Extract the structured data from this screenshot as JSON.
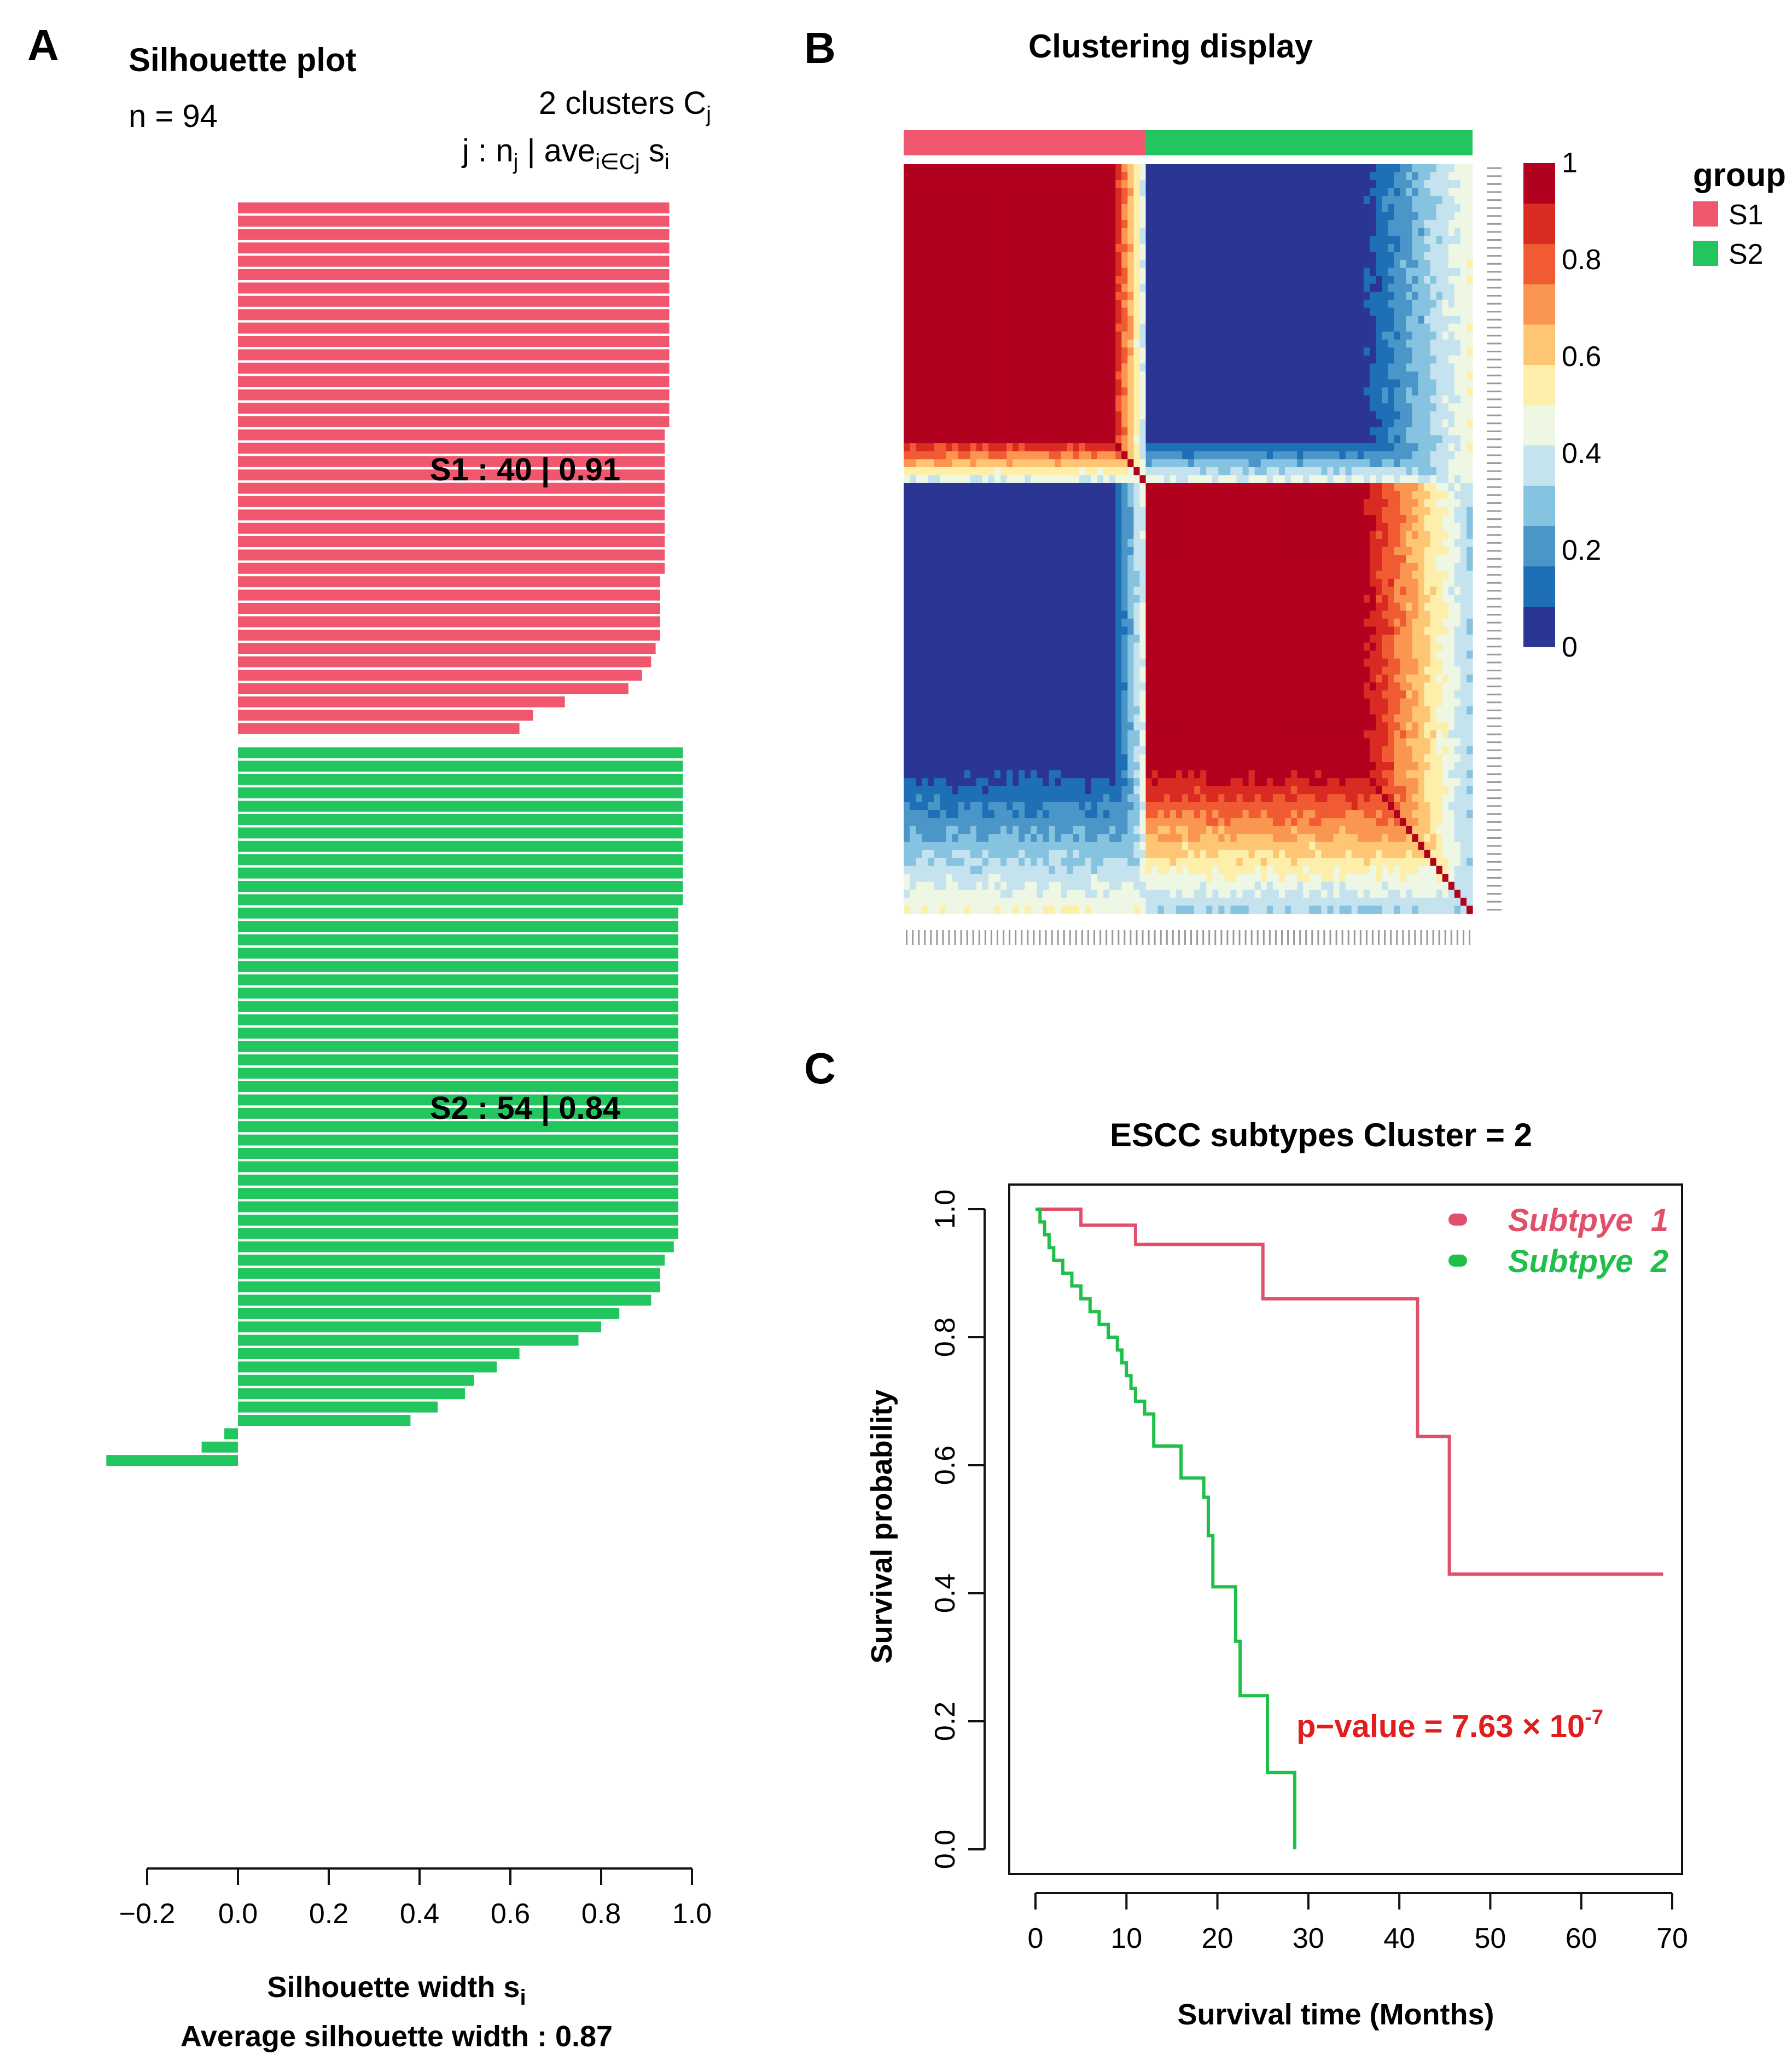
{
  "panels": {
    "a": {
      "letter": "A"
    },
    "b": {
      "letter": "B"
    },
    "c": {
      "letter": "C"
    }
  },
  "chart_data": [
    {
      "type": "bar",
      "orientation": "horizontal",
      "title": "Silhouette plot",
      "n_label": "n = 94",
      "header": {
        "clusters_prefix": "2  clusters  C",
        "clusters_sub": "j",
        "format_j": "j :  n",
        "format_sub_j": "j",
        "format_sep": " | ave",
        "format_sub_i": "i∈Cj",
        "format_s": "  s",
        "format_sub_s": "i"
      },
      "xlabel": "Silhouette width s",
      "xlabel_sub": "i",
      "footer": "Average silhouette width : 0.87",
      "xlim": [
        -0.2,
        1.0
      ],
      "xticks": [
        "−0.2",
        "0.0",
        "0.2",
        "0.4",
        "0.6",
        "0.8",
        "1.0"
      ],
      "clusters": [
        {
          "name": "S1",
          "color": "#f0566d",
          "label": "S1 :   40  | 0.91",
          "values": [
            0.95,
            0.95,
            0.95,
            0.95,
            0.95,
            0.95,
            0.95,
            0.95,
            0.95,
            0.95,
            0.95,
            0.95,
            0.95,
            0.95,
            0.95,
            0.95,
            0.95,
            0.94,
            0.94,
            0.94,
            0.94,
            0.94,
            0.94,
            0.94,
            0.94,
            0.94,
            0.94,
            0.94,
            0.93,
            0.93,
            0.93,
            0.93,
            0.93,
            0.92,
            0.91,
            0.89,
            0.86,
            0.72,
            0.65,
            0.62
          ]
        },
        {
          "name": "S2",
          "color": "#22c55e",
          "label": "S2 :   54  | 0.84",
          "values": [
            0.98,
            0.98,
            0.98,
            0.98,
            0.98,
            0.98,
            0.98,
            0.98,
            0.98,
            0.98,
            0.98,
            0.98,
            0.97,
            0.97,
            0.97,
            0.97,
            0.97,
            0.97,
            0.97,
            0.97,
            0.97,
            0.97,
            0.97,
            0.97,
            0.97,
            0.97,
            0.97,
            0.97,
            0.97,
            0.97,
            0.97,
            0.97,
            0.97,
            0.97,
            0.97,
            0.97,
            0.97,
            0.96,
            0.94,
            0.93,
            0.93,
            0.91,
            0.84,
            0.8,
            0.75,
            0.62,
            0.57,
            0.52,
            0.5,
            0.44,
            0.38,
            -0.03,
            -0.08,
            -0.29
          ]
        }
      ]
    },
    {
      "type": "heatmap",
      "title": "Clustering display",
      "groups": [
        {
          "name": "S1",
          "size": 40,
          "color": "#f0566d"
        },
        {
          "name": "S2",
          "size": 54,
          "color": "#22c55e"
        }
      ],
      "colorscale": [
        "#2b3593",
        "#1f6fb7",
        "#4a96c8",
        "#86c3e0",
        "#c4e3ef",
        "#edf7e4",
        "#fdeeaa",
        "#fdc574",
        "#fb9650",
        "#f05b33",
        "#d92b22",
        "#b2001f"
      ],
      "colorbar_ticks": [
        "0",
        "0.2",
        "0.4",
        "0.6",
        "0.8",
        "1"
      ],
      "legend_title": "group",
      "legend_items": [
        "S1",
        "S2"
      ],
      "note": "94 x 94 consensus matrix; high within-cluster consensus, low between clusters"
    },
    {
      "type": "line",
      "subtype": "kaplan-meier",
      "title": "ESCC subtypes Cluster = 2",
      "xlabel": "Survival time (Months)",
      "ylabel": "Survival probability",
      "xlim": [
        0,
        70
      ],
      "ylim": [
        0,
        1
      ],
      "xticks": [
        "0",
        "10",
        "20",
        "30",
        "40",
        "50",
        "60",
        "70"
      ],
      "yticks": [
        "0.0",
        "0.2",
        "0.4",
        "0.6",
        "0.8",
        "1.0"
      ],
      "annotation": "p−value = 7.63 × 10",
      "annotation_exp": "-7",
      "series": [
        {
          "name": "Subtpye  1",
          "color": "#e0506a",
          "x": [
            0,
            5,
            11,
            25,
            42,
            45.5,
            69
          ],
          "y": [
            1.0,
            0.975,
            0.945,
            0.86,
            0.645,
            0.43,
            0.43
          ]
        },
        {
          "name": "Subtpye  2",
          "color": "#1fbf4a",
          "x": [
            0,
            0.5,
            1,
            1.5,
            2,
            3,
            4,
            5,
            6,
            7,
            8,
            9,
            9.5,
            10,
            10.5,
            11,
            12,
            13,
            16,
            18.5,
            19,
            19.5,
            22,
            22.5,
            25.5,
            28.5
          ],
          "y": [
            1.0,
            0.98,
            0.96,
            0.94,
            0.92,
            0.9,
            0.88,
            0.86,
            0.84,
            0.82,
            0.8,
            0.78,
            0.76,
            0.74,
            0.72,
            0.7,
            0.68,
            0.63,
            0.58,
            0.55,
            0.49,
            0.41,
            0.325,
            0.24,
            0.12,
            0.0
          ]
        }
      ]
    }
  ]
}
